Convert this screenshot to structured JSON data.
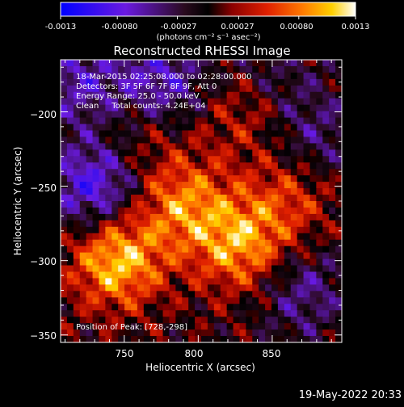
{
  "colorbar": {
    "tick_labels": [
      "-0.0013",
      "-0.00080",
      "-0.00027",
      "0.00027",
      "0.00080",
      "0.0013"
    ],
    "tick_values": [
      -0.0013,
      -0.0008,
      -0.00027,
      0.00027,
      0.0008,
      0.0013
    ],
    "range": [
      -0.0013,
      0.0013
    ],
    "unit_label": "(photons cm⁻² s⁻¹ asec⁻²)",
    "colormap": "blue-purple-black-red-orange-yellow-white"
  },
  "title": "Reconstructed RHESSI Image",
  "info_lines": [
    "18-Mar-2015 02:25:08.000 to 02:28:00.000",
    "Detectors: 3F 5F 6F 7F 8F 9F, Att 0",
    "Energy Range: 25.0 - 50.0 keV",
    "Clean     Total counts: 4.24E+04"
  ],
  "peak_text": "Position of Peak: [728,-298]",
  "footer_timestamp": "19-May-2022 20:33",
  "chart_data": {
    "type": "heatmap",
    "title": "Reconstructed RHESSI Image",
    "xlabel": "Heliocentric X (arcsec)",
    "ylabel": "Heliocentric Y (arcsec)",
    "xlim": [
      707,
      897
    ],
    "ylim": [
      -355,
      -165
    ],
    "x_ticks": [
      750,
      800,
      850
    ],
    "y_ticks": [
      -200,
      -250,
      -300,
      -350
    ],
    "x_tick_labels": [
      "750",
      "800",
      "850"
    ],
    "y_tick_labels": [
      "−200",
      "−250",
      "−300",
      "−350"
    ],
    "value_range": [
      -0.0013,
      0.0013
    ],
    "peak": {
      "x": 728,
      "y": -298
    },
    "features": [
      {
        "x": 790,
        "y": -262,
        "value": 0.0008
      },
      {
        "x": 745,
        "y": -300,
        "value": 0.0011
      },
      {
        "x": 828,
        "y": -290,
        "value": 0.0009
      },
      {
        "x": 860,
        "y": -260,
        "value": 0.0005
      },
      {
        "x": 760,
        "y": -215,
        "value": 0.0003
      },
      {
        "x": 830,
        "y": -200,
        "value": 0.0004
      },
      {
        "x": 730,
        "y": -250,
        "value": -0.0009
      },
      {
        "x": 775,
        "y": -180,
        "value": -0.0007
      },
      {
        "x": 720,
        "y": -180,
        "value": -0.0006
      },
      {
        "x": 870,
        "y": -320,
        "value": -0.0005
      },
      {
        "x": 880,
        "y": -215,
        "value": -0.0004
      },
      {
        "x": 850,
        "y": -175,
        "value": -0.0003
      }
    ]
  }
}
